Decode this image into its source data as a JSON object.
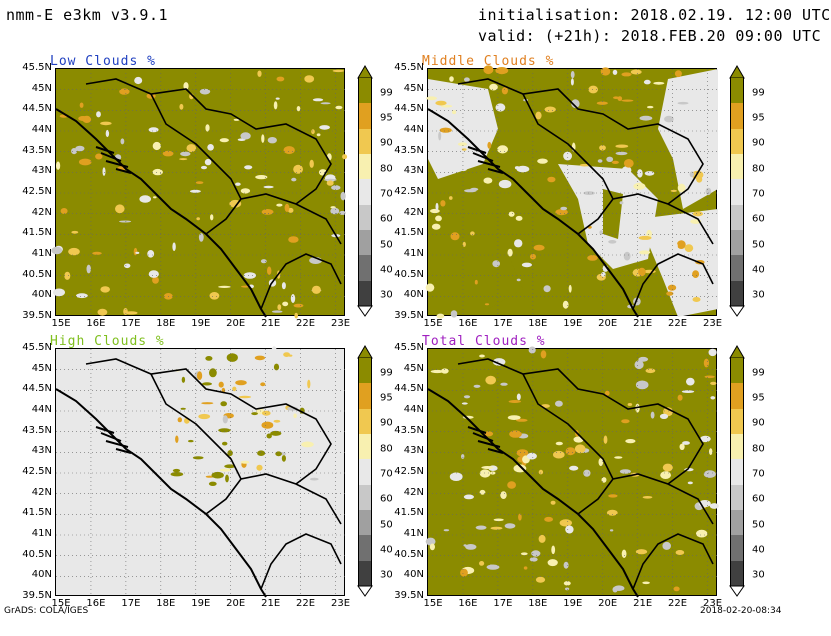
{
  "header": {
    "model": "nmm-E e3km v3.9.1",
    "init": "initialisation: 2018.02.19. 12:00 UTC",
    "valid": "valid: (+21h): 2018.FEB.20 09:00 UTC"
  },
  "footer": {
    "left": "GrADS: COLA/IGES",
    "right": "2018-02-20-08:34"
  },
  "axes": {
    "lat_labels": [
      "45.5N",
      "45N",
      "44.5N",
      "44N",
      "43.5N",
      "43N",
      "42.5N",
      "42N",
      "41.5N",
      "41N",
      "40.5N",
      "40N",
      "39.5N"
    ],
    "lon_labels": [
      "15E",
      "16E",
      "17E",
      "18E",
      "19E",
      "20E",
      "21E",
      "22E",
      "23E"
    ]
  },
  "legend": {
    "labels": [
      "99",
      "95",
      "90",
      "80",
      "70",
      "60",
      "50",
      "40",
      "30"
    ],
    "colors": [
      "#8b8b00",
      "#e0a020",
      "#f0c850",
      "#f8f0b0",
      "#e8e8e8",
      "#c8c8c8",
      "#a0a0a0",
      "#707070",
      "#404040"
    ]
  },
  "panels": [
    {
      "title": "Low Clouds %",
      "title_color": "#2040c0",
      "coverage": "mostly-high"
    },
    {
      "title": "Middle Clouds %",
      "title_color": "#e08020",
      "coverage": "mixed"
    },
    {
      "title": "High Clouds %",
      "title_color": "#80c020",
      "coverage": "mostly-low"
    },
    {
      "title": "Total Clouds %",
      "title_color": "#a020c0",
      "coverage": "mostly-high"
    }
  ]
}
